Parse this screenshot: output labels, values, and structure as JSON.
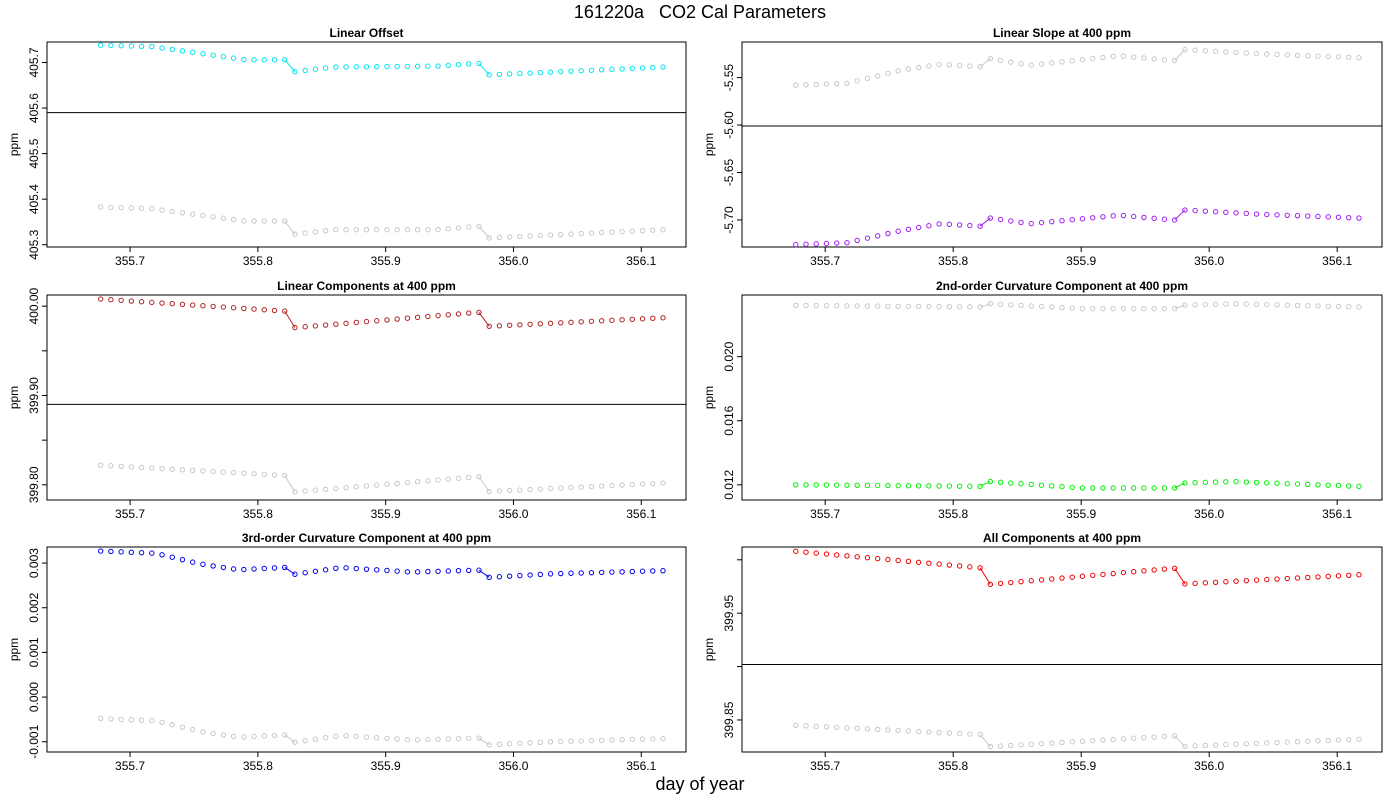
{
  "figure": {
    "title": "161220a   CO2 Cal Parameters",
    "xlabel": "day of year"
  },
  "chart_data": [
    {
      "type": "scatter",
      "title": "Linear Offset",
      "ylabel": "ppm",
      "ylim": [
        405.295,
        405.745
      ],
      "xlim": [
        355.635,
        356.135
      ],
      "yticks": [
        405.3,
        405.4,
        405.5,
        405.6,
        405.7
      ],
      "ytick_labels": [
        "405.3",
        "405.4",
        "405.5",
        "405.6",
        "405.7"
      ],
      "hline": 405.59,
      "segments": [
        [
          355.677,
          355.826,
          0
        ],
        [
          355.829,
          355.971,
          1
        ],
        [
          355.974,
          356.117,
          2
        ]
      ],
      "series": [
        {
          "color": "#00e5ee",
          "segs": [
            [
              [
                355.677,
                405.738
              ],
              [
                355.717,
                405.735
              ],
              [
                355.76,
                405.718
              ],
              [
                355.79,
                405.706
              ],
              [
                355.826,
                405.706
              ]
            ],
            [
              [
                355.829,
                405.68
              ],
              [
                355.86,
                405.69
              ],
              [
                355.94,
                405.692
              ],
              [
                355.971,
                405.698
              ]
            ],
            [
              [
                355.974,
                405.672
              ],
              [
                356.117,
                405.69
              ]
            ]
          ]
        },
        {
          "color": "#c8c8c8",
          "segs": [
            [
              [
                355.677,
                405.383
              ],
              [
                355.717,
                405.379
              ],
              [
                355.76,
                405.363
              ],
              [
                355.79,
                405.352
              ],
              [
                355.826,
                405.352
              ]
            ],
            [
              [
                355.829,
                405.323
              ],
              [
                355.86,
                405.333
              ],
              [
                355.94,
                405.333
              ],
              [
                355.971,
                405.34
              ]
            ],
            [
              [
                355.974,
                405.314
              ],
              [
                356.117,
                405.333
              ]
            ]
          ]
        }
      ]
    },
    {
      "type": "scatter",
      "title": "Linear Slope at 400 ppm",
      "ylabel": "ppm",
      "ylim": [
        -5.7285,
        -5.5125
      ],
      "xlim": [
        355.635,
        356.135
      ],
      "yticks": [
        -5.7,
        -5.65,
        -5.6,
        -5.55
      ],
      "ytick_labels": [
        "-5.70",
        "-5.65",
        "-5.60",
        "-5.55"
      ],
      "hline": -5.601,
      "segments": [
        [
          355.677,
          355.826,
          0
        ],
        [
          355.829,
          355.971,
          1
        ],
        [
          355.974,
          356.117,
          2
        ]
      ],
      "series": [
        {
          "color": "#c8c8c8",
          "segs": [
            [
              [
                355.677,
                -5.558
              ],
              [
                355.717,
                -5.556
              ],
              [
                355.76,
                -5.542
              ],
              [
                355.79,
                -5.536
              ],
              [
                355.826,
                -5.539
              ]
            ],
            [
              [
                355.829,
                -5.53
              ],
              [
                355.86,
                -5.537
              ],
              [
                355.93,
                -5.527
              ],
              [
                355.971,
                -5.532
              ]
            ],
            [
              [
                355.974,
                -5.52
              ],
              [
                356.04,
                -5.525
              ],
              [
                356.117,
                -5.529
              ]
            ]
          ]
        },
        {
          "color": "#a020f0",
          "segs": [
            [
              [
                355.677,
                -5.726
              ],
              [
                355.717,
                -5.724
              ],
              [
                355.76,
                -5.711
              ],
              [
                355.79,
                -5.704
              ],
              [
                355.826,
                -5.707
              ]
            ],
            [
              [
                355.829,
                -5.698
              ],
              [
                355.86,
                -5.704
              ],
              [
                355.93,
                -5.695
              ],
              [
                355.971,
                -5.7
              ]
            ],
            [
              [
                355.974,
                -5.689
              ],
              [
                356.04,
                -5.694
              ],
              [
                356.117,
                -5.698
              ]
            ]
          ]
        }
      ]
    },
    {
      "type": "scatter",
      "title": "Linear Components at 400 ppm",
      "ylabel": "ppm",
      "ylim": [
        399.783,
        400.0125
      ],
      "xlim": [
        355.635,
        356.135
      ],
      "yticks": [
        399.8,
        399.9,
        400.0
      ],
      "ytick_labels": [
        "399.80",
        "399.90",
        "400.00"
      ],
      "minor_yticks": [
        399.85,
        399.95
      ],
      "hline": 399.89,
      "segments": [
        [
          355.677,
          355.826,
          0
        ],
        [
          355.829,
          355.971,
          1
        ],
        [
          355.974,
          356.117,
          2
        ]
      ],
      "series": [
        {
          "color": "#b22222",
          "segs": [
            [
              [
                355.677,
                400.008
              ],
              [
                355.826,
                399.994
              ]
            ],
            [
              [
                355.829,
                399.976
              ],
              [
                355.971,
                399.993
              ]
            ],
            [
              [
                355.974,
                399.977
              ],
              [
                356.117,
                399.987
              ]
            ]
          ]
        },
        {
          "color": "#c8c8c8",
          "segs": [
            [
              [
                355.677,
                399.822
              ],
              [
                355.826,
                399.81
              ]
            ],
            [
              [
                355.829,
                399.792
              ],
              [
                355.971,
                399.809
              ]
            ],
            [
              [
                355.974,
                399.792
              ],
              [
                356.117,
                399.802
              ]
            ]
          ]
        }
      ]
    },
    {
      "type": "scatter",
      "title": "2nd-order Curvature Component at 400 ppm",
      "ylabel": "ppm",
      "ylim": [
        0.01105,
        0.02385
      ],
      "xlim": [
        355.635,
        356.135
      ],
      "yticks": [
        0.012,
        0.016,
        0.02
      ],
      "ytick_labels": [
        "0.012",
        "0.016",
        "0.020"
      ],
      "segments": [
        [
          355.677,
          355.826,
          0
        ],
        [
          355.829,
          355.971,
          1
        ],
        [
          355.974,
          356.117,
          2
        ]
      ],
      "series": [
        {
          "color": "#c8c8c8",
          "segs": [
            [
              [
                355.677,
                0.0232
              ],
              [
                355.826,
                0.0231
              ]
            ],
            [
              [
                355.829,
                0.0233
              ],
              [
                355.9,
                0.023
              ],
              [
                355.971,
                0.023
              ]
            ],
            [
              [
                355.974,
                0.0232
              ],
              [
                356.02,
                0.0233
              ],
              [
                356.117,
                0.0231
              ]
            ]
          ]
        },
        {
          "color": "#00ee00",
          "segs": [
            [
              [
                355.677,
                0.012
              ],
              [
                355.826,
                0.0119
              ]
            ],
            [
              [
                355.829,
                0.0122
              ],
              [
                355.9,
                0.0118
              ],
              [
                355.971,
                0.0118
              ]
            ],
            [
              [
                355.974,
                0.0121
              ],
              [
                356.02,
                0.0122
              ],
              [
                356.117,
                0.0119
              ]
            ]
          ]
        }
      ]
    },
    {
      "type": "scatter",
      "title": "3rd-order Curvature Component at 400 ppm",
      "ylabel": "ppm",
      "ylim": [
        -0.00123,
        0.00336
      ],
      "xlim": [
        355.635,
        356.135
      ],
      "yticks": [
        -0.001,
        0.0,
        0.001,
        0.002,
        0.003
      ],
      "ytick_labels": [
        "-0.001",
        "0.000",
        "0.001",
        "0.002",
        "0.003"
      ],
      "segments": [
        [
          355.677,
          355.826,
          0
        ],
        [
          355.829,
          355.971,
          1
        ],
        [
          355.974,
          356.117,
          2
        ]
      ],
      "series": [
        {
          "color": "#0000ee",
          "segs": [
            [
              [
                355.677,
                0.00327
              ],
              [
                355.72,
                0.00322
              ],
              [
                355.755,
                0.00298
              ],
              [
                355.785,
                0.00285
              ],
              [
                355.826,
                0.00291
              ]
            ],
            [
              [
                355.829,
                0.00275
              ],
              [
                355.865,
                0.0029
              ],
              [
                355.92,
                0.0028
              ],
              [
                355.971,
                0.00284
              ]
            ],
            [
              [
                355.974,
                0.00267
              ],
              [
                356.03,
                0.00276
              ],
              [
                356.117,
                0.00283
              ]
            ]
          ]
        },
        {
          "color": "#c8c8c8",
          "segs": [
            [
              [
                355.677,
                -0.00048
              ],
              [
                355.72,
                -0.00053
              ],
              [
                355.755,
                -0.00077
              ],
              [
                355.785,
                -0.0009
              ],
              [
                355.826,
                -0.00084
              ]
            ],
            [
              [
                355.829,
                -0.00101
              ],
              [
                355.865,
                -0.00086
              ],
              [
                355.92,
                -0.00096
              ],
              [
                355.971,
                -0.00092
              ]
            ],
            [
              [
                355.974,
                -0.00108
              ],
              [
                356.03,
                -0.001
              ],
              [
                356.117,
                -0.00093
              ]
            ]
          ]
        }
      ]
    },
    {
      "type": "scatter",
      "title": "All Components at 400 ppm",
      "ylabel": "ppm",
      "ylim": [
        399.82,
        400.012
      ],
      "xlim": [
        355.635,
        356.135
      ],
      "yticks": [
        399.85,
        399.95
      ],
      "ytick_labels": [
        "399.85",
        "399.95"
      ],
      "minor_yticks": [
        399.9,
        400.0
      ],
      "hline": 399.902,
      "segments": [
        [
          355.677,
          355.826,
          0
        ],
        [
          355.829,
          355.971,
          1
        ],
        [
          355.974,
          356.117,
          2
        ]
      ],
      "series": [
        {
          "color": "#ee0000",
          "segs": [
            [
              [
                355.677,
                400.008
              ],
              [
                355.826,
                399.992
              ]
            ],
            [
              [
                355.829,
                399.977
              ],
              [
                355.971,
                399.992
              ]
            ],
            [
              [
                355.974,
                399.977
              ],
              [
                356.117,
                399.986
              ]
            ]
          ]
        },
        {
          "color": "#c8c8c8",
          "segs": [
            [
              [
                355.677,
                399.845
              ],
              [
                355.826,
                399.836
              ]
            ],
            [
              [
                355.829,
                399.825
              ],
              [
                355.971,
                399.835
              ]
            ],
            [
              [
                355.974,
                399.825
              ],
              [
                356.117,
                399.832
              ]
            ]
          ]
        }
      ]
    }
  ],
  "shared_x": {
    "ticks": [
      355.7,
      355.8,
      355.9,
      356.0,
      356.1
    ],
    "tick_labels": [
      "355.7",
      "355.8",
      "355.9",
      "356.0",
      "356.1"
    ]
  }
}
